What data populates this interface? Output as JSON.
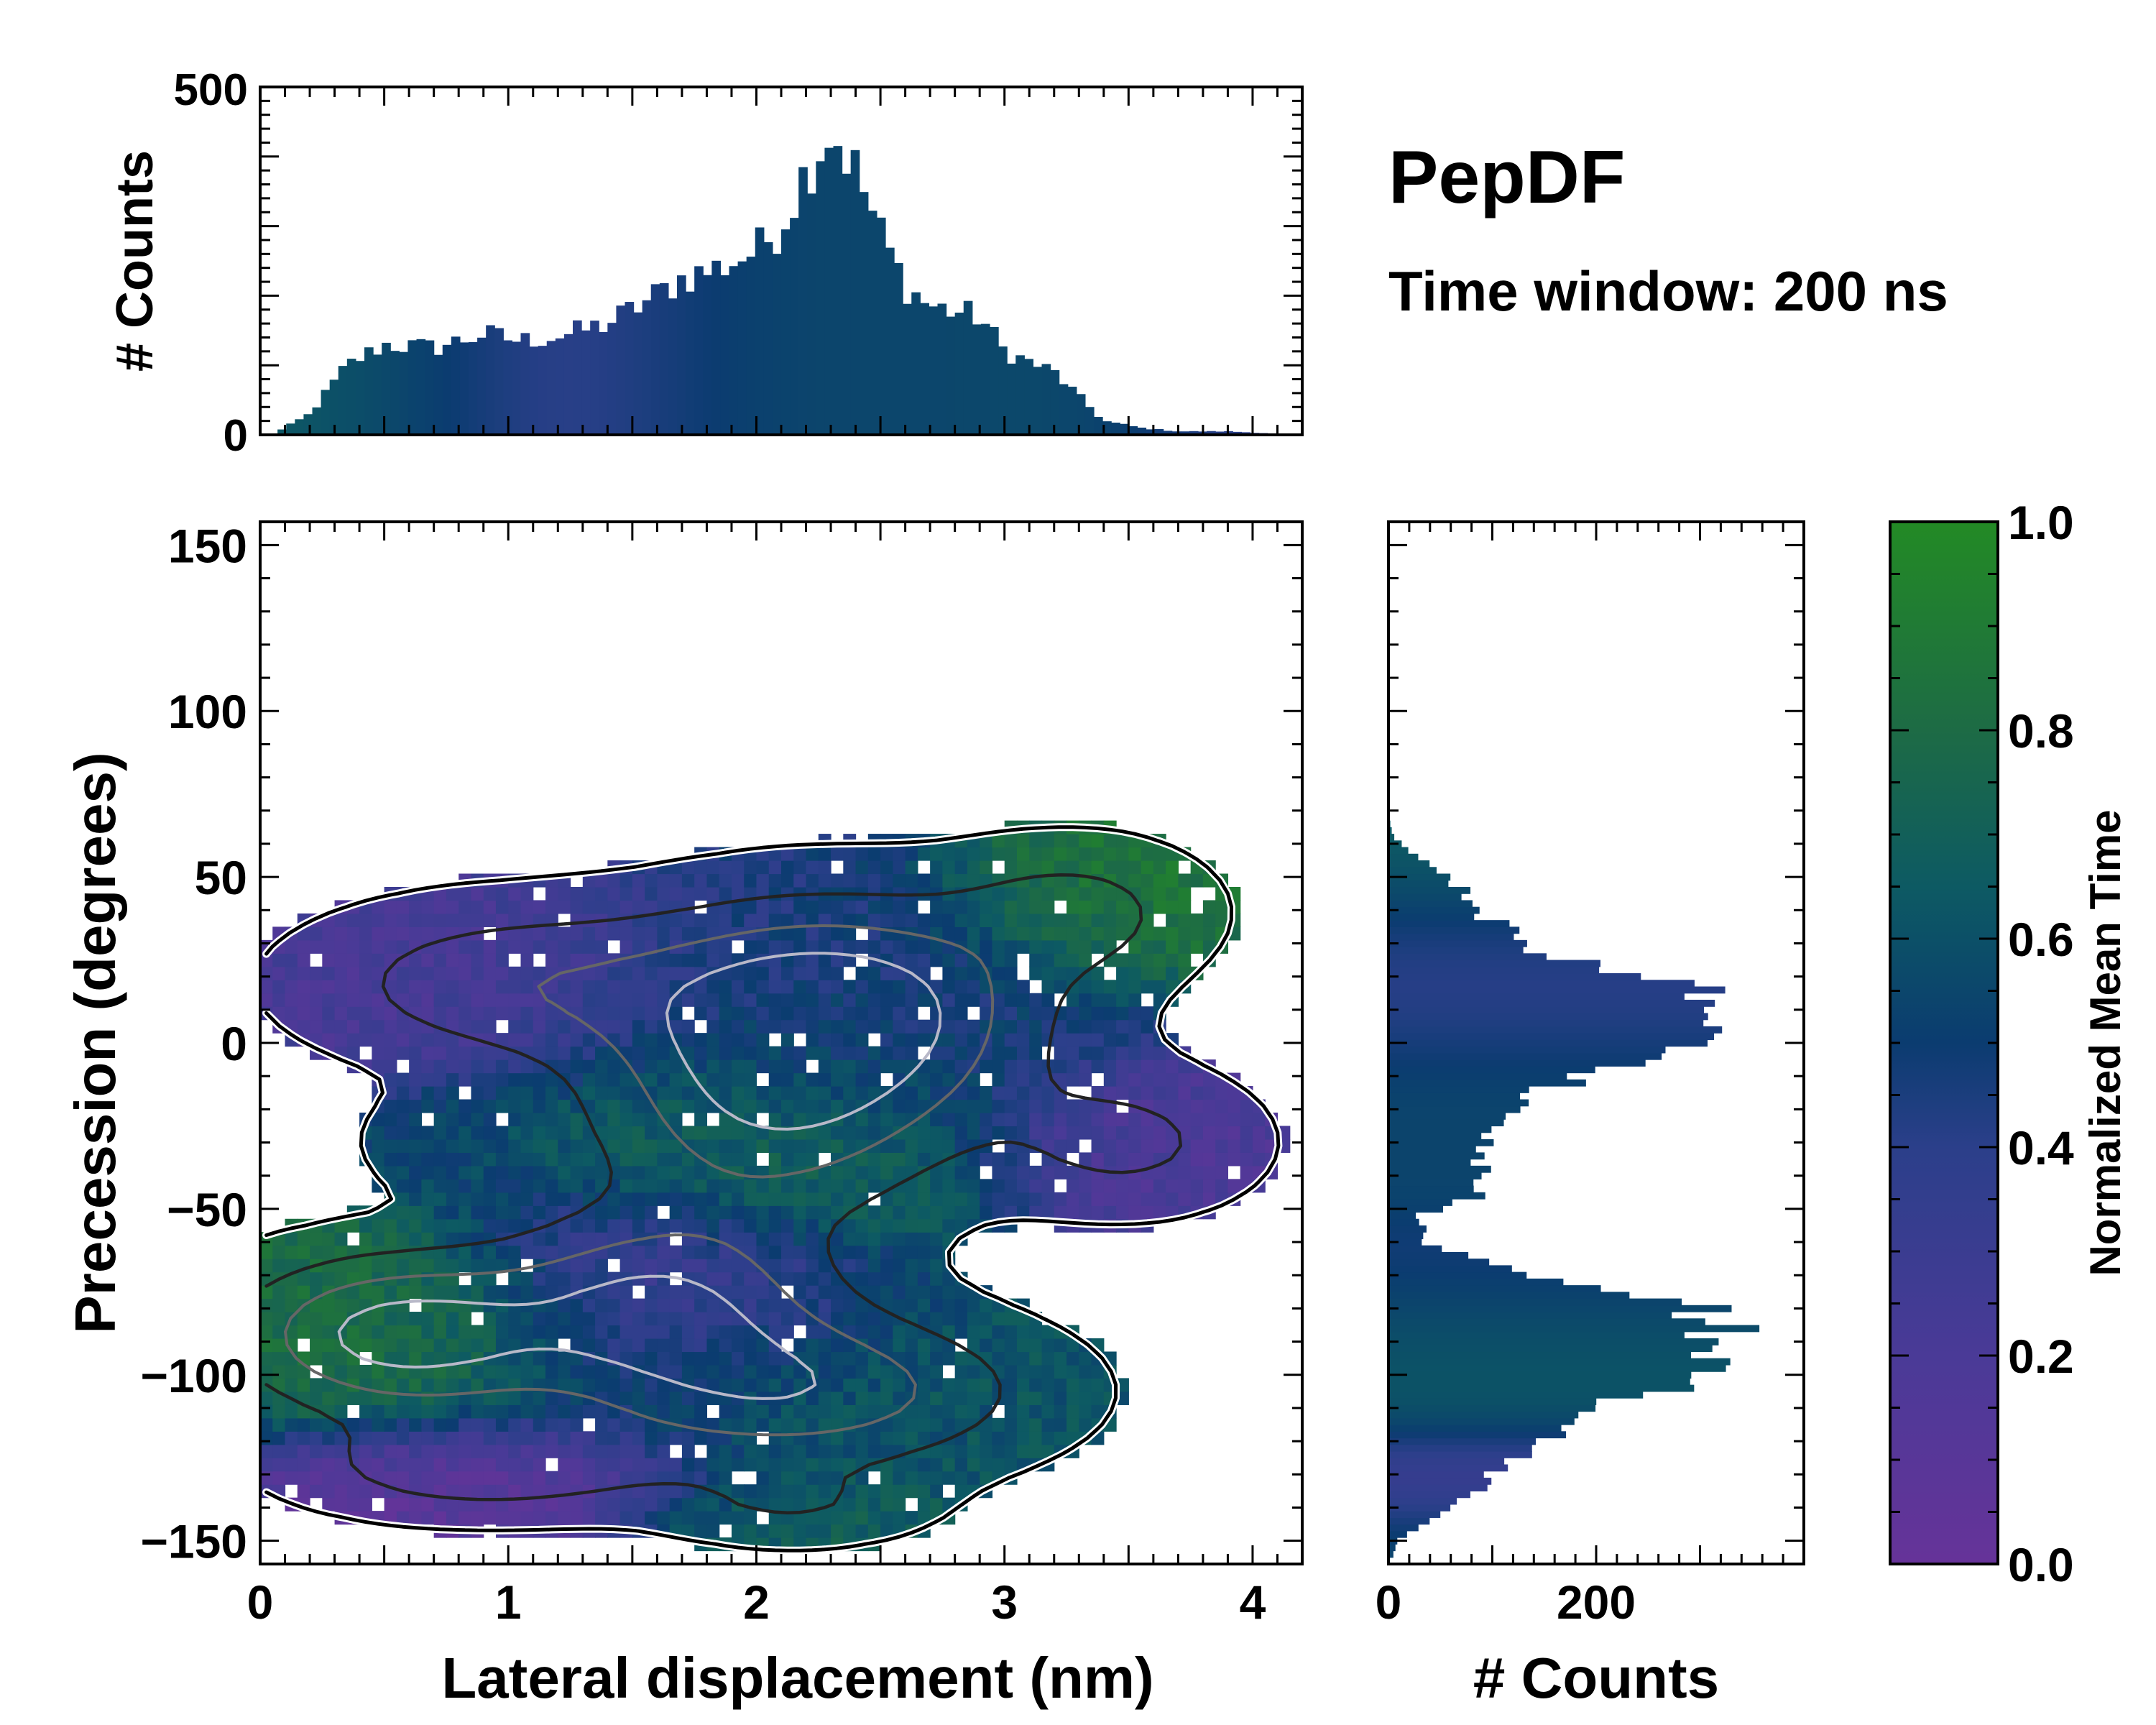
{
  "chart_data": [
    {
      "id": "top-histogram",
      "type": "bar",
      "xlim": [
        0,
        4.2
      ],
      "ylim": [
        0,
        500
      ],
      "ylabel": "# Counts",
      "yticks": [
        "500",
        "0"
      ],
      "bin_width": 0.035,
      "profile_x": [
        0.05,
        0.2,
        0.35,
        0.5,
        0.7,
        0.9,
        1.05,
        1.25,
        1.4,
        1.55,
        1.7,
        1.85,
        2.0,
        2.1,
        2.2,
        2.3,
        2.4,
        2.5,
        2.6,
        2.7,
        2.9,
        3.0,
        3.2,
        3.4,
        3.55,
        3.7,
        3.9,
        4.2
      ],
      "profile_y": [
        0,
        30,
        100,
        130,
        125,
        145,
        135,
        145,
        160,
        190,
        225,
        240,
        265,
        300,
        380,
        440,
        380,
        290,
        215,
        185,
        170,
        120,
        90,
        20,
        10,
        5,
        5,
        0
      ],
      "note": "envelope of the marginal histogram of lateral displacement; bars are coloured by normalized mean time"
    },
    {
      "id": "main-heatmap",
      "type": "heatmap",
      "xlabel": "Lateral displacement (nm)",
      "ylabel": "Precession (degrees)",
      "xlim": [
        0,
        4.2
      ],
      "ylim": [
        -157,
        157
      ],
      "xticks": [
        {
          "value": 0,
          "label": "0"
        },
        {
          "value": 1,
          "label": "1"
        },
        {
          "value": 2,
          "label": "2"
        },
        {
          "value": 3,
          "label": "3"
        },
        {
          "value": 4,
          "label": "4"
        }
      ],
      "yticks": [
        {
          "value": 150,
          "label": "150"
        },
        {
          "value": 100,
          "label": "100"
        },
        {
          "value": 50,
          "label": "50"
        },
        {
          "value": 0,
          "label": "0"
        },
        {
          "value": -50,
          "label": "−50"
        },
        {
          "value": -100,
          "label": "−100"
        },
        {
          "value": -150,
          "label": "−150"
        }
      ],
      "bin_size": [
        0.05,
        4
      ],
      "clusters": [
        {
          "cx": 2.3,
          "cy": 10,
          "sx": 0.55,
          "sy": 22,
          "weight": 1.0,
          "time": 0.45
        },
        {
          "cx": 2.05,
          "cy": -25,
          "sx": 0.5,
          "sy": 22,
          "weight": 0.55,
          "time": 0.75
        },
        {
          "cx": 3.3,
          "cy": 40,
          "sx": 0.35,
          "sy": 14,
          "weight": 0.35,
          "time": 0.88
        },
        {
          "cx": 1.0,
          "cy": 18,
          "sx": 0.55,
          "sy": 16,
          "weight": 0.45,
          "time": 0.22
        },
        {
          "cx": 0.8,
          "cy": -30,
          "sx": 0.25,
          "sy": 10,
          "weight": 0.25,
          "time": 0.55
        },
        {
          "cx": 3.5,
          "cy": -30,
          "sx": 0.35,
          "sy": 14,
          "weight": 0.35,
          "time": 0.18
        },
        {
          "cx": 0.55,
          "cy": -88,
          "sx": 0.45,
          "sy": 16,
          "weight": 0.9,
          "time": 0.8
        },
        {
          "cx": 1.6,
          "cy": -78,
          "sx": 0.45,
          "sy": 18,
          "weight": 0.75,
          "time": 0.28
        },
        {
          "cx": 2.2,
          "cy": -105,
          "sx": 0.6,
          "sy": 16,
          "weight": 0.7,
          "time": 0.62
        },
        {
          "cx": 0.9,
          "cy": -128,
          "sx": 0.5,
          "sy": 10,
          "weight": 0.45,
          "time": 0.08
        },
        {
          "cx": 2.15,
          "cy": -140,
          "sx": 0.35,
          "sy": 8,
          "weight": 0.25,
          "time": 0.7
        }
      ],
      "contour_levels": [
        0.08,
        0.3,
        0.55,
        0.8
      ],
      "note": "density-weighted heatmap coloured by normalized mean time with density contours"
    },
    {
      "id": "right-histogram",
      "type": "bar",
      "orientation": "horizontal",
      "ylim": [
        -157,
        157
      ],
      "xlim": [
        0,
        400
      ],
      "xlabel": "# Counts",
      "xticks": [
        {
          "value": 0,
          "label": "0"
        },
        {
          "value": 200,
          "label": "200"
        }
      ],
      "bin_width": 2,
      "profile_y": [
        -157,
        -150,
        -135,
        -120,
        -110,
        -100,
        -90,
        -80,
        -75,
        -68,
        -60,
        -52,
        -45,
        -35,
        -25,
        -15,
        -5,
        5,
        15,
        25,
        35,
        45,
        55,
        62,
        68,
        157
      ],
      "profile_x": [
        0,
        10,
        80,
        150,
        210,
        290,
        320,
        320,
        250,
        110,
        35,
        30,
        90,
        85,
        100,
        140,
        260,
        320,
        300,
        170,
        105,
        75,
        30,
        5,
        0,
        0
      ],
      "note": "envelope of the marginal histogram of precession; bars are coloured by normalized mean time"
    },
    {
      "id": "colorbar",
      "type": "colorbar",
      "label": "Normalized Mean Time",
      "range": [
        0,
        1
      ],
      "ticks": [
        {
          "value": 1.0,
          "label": "1.0"
        },
        {
          "value": 0.8,
          "label": "0.8"
        },
        {
          "value": 0.6,
          "label": "0.6"
        },
        {
          "value": 0.4,
          "label": "0.4"
        },
        {
          "value": 0.2,
          "label": "0.2"
        },
        {
          "value": 0.0,
          "label": "0.0"
        }
      ],
      "stops": [
        {
          "value": 0.0,
          "color": "#663399"
        },
        {
          "value": 0.2,
          "color": "#4a3a97"
        },
        {
          "value": 0.4,
          "color": "#2b3f8a"
        },
        {
          "value": 0.5,
          "color": "#0b3c70"
        },
        {
          "value": 0.65,
          "color": "#0d5a63"
        },
        {
          "value": 0.8,
          "color": "#1d6b45"
        },
        {
          "value": 1.0,
          "color": "#238a25"
        }
      ]
    }
  ],
  "title": "PepDF",
  "subtitle": "Time window: 200 ns"
}
